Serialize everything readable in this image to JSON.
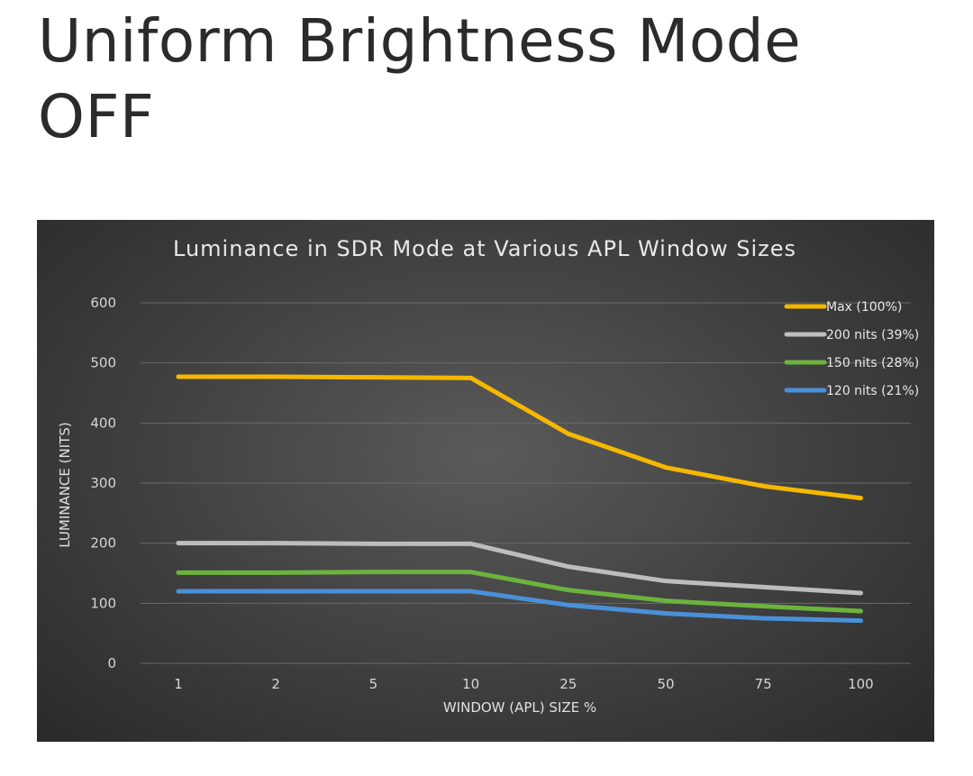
{
  "page": {
    "title_line1": "Uniform Brightness Mode",
    "title_line2": "OFF"
  },
  "chart_data": {
    "type": "line",
    "title": "Luminance in SDR Mode at Various APL Window Sizes",
    "xlabel": "WINDOW (APL) SIZE %",
    "ylabel": "LUMINANCE (NITS)",
    "categories": [
      "1",
      "2",
      "5",
      "10",
      "25",
      "50",
      "75",
      "100"
    ],
    "ylim": [
      0,
      600
    ],
    "yticks": [
      "0",
      "100",
      "200",
      "300",
      "400",
      "500",
      "600"
    ],
    "grid": true,
    "legend_position": "top-right",
    "series": [
      {
        "name": "Max (100%)",
        "color": "#f5b800",
        "values": [
          477,
          477,
          476,
          475,
          382,
          326,
          295,
          275
        ]
      },
      {
        "name": "200 nits (39%)",
        "color": "#bdbdbd",
        "values": [
          200,
          200,
          199,
          199,
          161,
          137,
          127,
          117
        ]
      },
      {
        "name": "150 nits (28%)",
        "color": "#6cb33e",
        "values": [
          151,
          151,
          152,
          152,
          122,
          104,
          95,
          87
        ]
      },
      {
        "name": "120 nits (21%)",
        "color": "#4a90d9",
        "values": [
          120,
          120,
          120,
          120,
          97,
          83,
          75,
          71
        ]
      }
    ]
  }
}
